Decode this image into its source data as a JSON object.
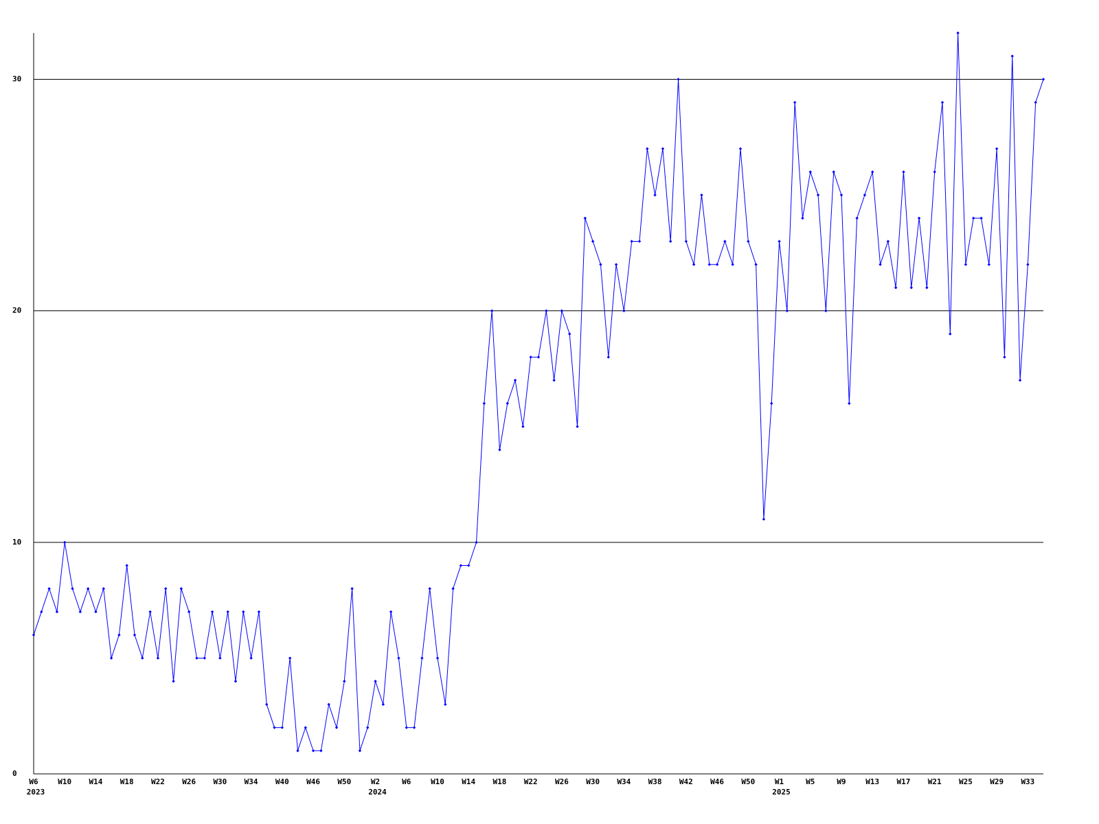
{
  "chart_data": {
    "type": "line",
    "color": "#0000ff",
    "grid": true,
    "ylim": [
      0,
      32
    ],
    "yticks": [
      0,
      10,
      20,
      30
    ],
    "categories": [
      "W6",
      null,
      null,
      null,
      "W10",
      null,
      null,
      null,
      "W14",
      null,
      null,
      null,
      "W18",
      null,
      null,
      null,
      "W22",
      null,
      null,
      null,
      "W26",
      null,
      null,
      null,
      "W30",
      null,
      null,
      null,
      "W34",
      null,
      null,
      null,
      "W40",
      null,
      null,
      null,
      "W46",
      null,
      null,
      null,
      "W50",
      null,
      null,
      null,
      "W2",
      null,
      null,
      null,
      "W6",
      null,
      null,
      null,
      "W10",
      null,
      null,
      null,
      "W14",
      null,
      null,
      null,
      "W18",
      null,
      null,
      null,
      "W22",
      null,
      null,
      null,
      "W26",
      null,
      null,
      null,
      "W30",
      null,
      null,
      null,
      "W34",
      null,
      null,
      null,
      "W38",
      null,
      null,
      null,
      "W42",
      null,
      null,
      null,
      "W46",
      null,
      null,
      null,
      "W50",
      null,
      null,
      null,
      "W1",
      null,
      null,
      null,
      "W5",
      null,
      null,
      null,
      "W9",
      null,
      null,
      null,
      "W13",
      null,
      null,
      null,
      "W17",
      null,
      null,
      null,
      "W21",
      null,
      null,
      null,
      "W25",
      null,
      null,
      null,
      "W29",
      null,
      null,
      null,
      "W33",
      null,
      null
    ],
    "years": [
      "2023",
      null,
      null,
      null,
      null,
      null,
      null,
      null,
      null,
      null,
      null,
      null,
      null,
      null,
      null,
      null,
      null,
      null,
      null,
      null,
      null,
      null,
      null,
      null,
      null,
      null,
      null,
      null,
      null,
      null,
      null,
      null,
      null,
      null,
      null,
      null,
      null,
      null,
      null,
      null,
      null,
      null,
      null,
      null,
      "2024",
      null,
      null,
      null,
      null,
      null,
      null,
      null,
      null,
      null,
      null,
      null,
      null,
      null,
      null,
      null,
      null,
      null,
      null,
      null,
      null,
      null,
      null,
      null,
      null,
      null,
      null,
      null,
      null,
      null,
      null,
      null,
      null,
      null,
      null,
      null,
      null,
      null,
      null,
      null,
      null,
      null,
      null,
      null,
      null,
      null,
      null,
      null,
      null,
      null,
      null,
      null,
      "2025",
      null,
      null,
      null,
      null,
      null,
      null,
      null,
      null,
      null,
      null,
      null,
      null,
      null,
      null,
      null,
      null,
      null,
      null,
      null,
      null,
      null,
      null,
      null,
      null,
      null,
      null,
      null,
      null,
      null,
      null,
      null,
      null,
      null
    ],
    "values": [
      6,
      7,
      8,
      7,
      10,
      8,
      7,
      8,
      7,
      8,
      5,
      6,
      9,
      6,
      5,
      7,
      5,
      8,
      4,
      8,
      7,
      5,
      5,
      7,
      5,
      7,
      4,
      7,
      5,
      7,
      3,
      2,
      2,
      5,
      1,
      2,
      1,
      1,
      3,
      2,
      4,
      8,
      1,
      2,
      4,
      3,
      7,
      5,
      2,
      2,
      5,
      8,
      5,
      3,
      8,
      9,
      9,
      10,
      16,
      20,
      14,
      16,
      17,
      15,
      18,
      18,
      20,
      17,
      20,
      19,
      15,
      24,
      23,
      22,
      18,
      22,
      20,
      23,
      23,
      27,
      25,
      27,
      23,
      30,
      23,
      22,
      25,
      22,
      22,
      23,
      22,
      27,
      23,
      22,
      11,
      16,
      23,
      20,
      29,
      24,
      26,
      25,
      20,
      26,
      25,
      16,
      24,
      25,
      26,
      22,
      23,
      21,
      26,
      21,
      24,
      21,
      26,
      29,
      19,
      32,
      22,
      24,
      24,
      22,
      27,
      18,
      31,
      17,
      22,
      29,
      30
    ]
  }
}
